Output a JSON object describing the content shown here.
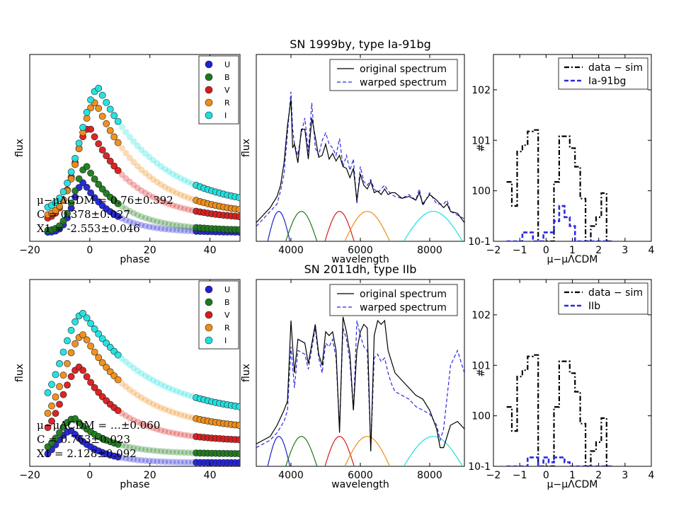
{
  "figure": {
    "rows": [
      {
        "title": "SN 1999by, type Ia-91bg",
        "annotations": [
          "μ−μΛCDM = 0.76±0.392",
          "C = 0.378±0.027",
          "X1 = -2.553±0.046"
        ],
        "hist_model_label": "Ia-91bg"
      },
      {
        "title": "SN 2011dh, type IIb",
        "annotations": [
          "μ−μΛCDM = …±0.060",
          "C = 0.763±0.023",
          "X1 = 2.128±0.092"
        ],
        "hist_model_label": "IIb"
      }
    ],
    "colors": {
      "U": "#1f1fd6",
      "B": "#1a7a1a",
      "V": "#d81a1a",
      "R": "#f08c14",
      "I": "#1ce0e0",
      "warped": "#2a2ae0"
    }
  },
  "chart_data": [
    {
      "type": "scatter",
      "panel": "lightcurve-top",
      "title": "",
      "xlabel": "phase",
      "ylabel": "flux",
      "xlim": [
        -20,
        50
      ],
      "ylim": [
        0,
        1.05
      ],
      "xticks": [
        "−20",
        "0",
        "20",
        "40"
      ],
      "xtick_values": [
        -20,
        0,
        20,
        40
      ],
      "legend": [
        "U",
        "B",
        "V",
        "R",
        "I"
      ],
      "series": [
        {
          "name": "U",
          "peak_phase": -2,
          "peak": 0.33,
          "rise": 3.5,
          "decay": 10,
          "tail": 0.05
        },
        {
          "name": "B",
          "peak_phase": -1,
          "peak": 0.42,
          "rise": 4,
          "decay": 12,
          "tail": 0.06
        },
        {
          "name": "V",
          "peak_phase": 0,
          "peak": 0.64,
          "rise": 5,
          "decay": 15,
          "tail": 0.12
        },
        {
          "name": "R",
          "peak_phase": 2,
          "peak": 0.78,
          "rise": 5.5,
          "decay": 17,
          "tail": 0.14
        },
        {
          "name": "I",
          "peak_phase": 3,
          "peak": 0.86,
          "rise": 6,
          "decay": 20,
          "tail": 0.18
        }
      ]
    },
    {
      "type": "line",
      "panel": "spectrum-top",
      "title": "SN 1999by, type Ia-91bg",
      "xlabel": "wavelength",
      "ylabel": "flux",
      "xlim": [
        3000,
        9000
      ],
      "ylim": [
        0,
        1
      ],
      "xticks": [
        "4000",
        "6000",
        "8000"
      ],
      "xtick_values": [
        4000,
        6000,
        8000
      ],
      "legend": [
        "original spectrum",
        "warped spectrum"
      ],
      "original": {
        "x": [
          3000,
          3200,
          3400,
          3600,
          3700,
          3800,
          3900,
          4000,
          4050,
          4100,
          4200,
          4300,
          4400,
          4500,
          4600,
          4700,
          4800,
          4900,
          5000,
          5100,
          5200,
          5300,
          5400,
          5500,
          5600,
          5700,
          5800,
          5900,
          6000,
          6100,
          6200,
          6300,
          6400,
          6500,
          6600,
          6700,
          6800,
          6900,
          7000,
          7200,
          7400,
          7600,
          7700,
          7800,
          8000,
          8200,
          8400,
          8500,
          8600,
          8800,
          9000
        ],
        "y": [
          0.1,
          0.14,
          0.18,
          0.24,
          0.3,
          0.42,
          0.62,
          0.76,
          0.5,
          0.52,
          0.42,
          0.6,
          0.6,
          0.44,
          0.66,
          0.56,
          0.45,
          0.46,
          0.52,
          0.44,
          0.47,
          0.43,
          0.46,
          0.4,
          0.39,
          0.34,
          0.39,
          0.22,
          0.36,
          0.3,
          0.28,
          0.32,
          0.26,
          0.27,
          0.25,
          0.28,
          0.25,
          0.26,
          0.26,
          0.23,
          0.24,
          0.22,
          0.26,
          0.2,
          0.25,
          0.22,
          0.18,
          0.2,
          0.16,
          0.15,
          0.1
        ]
      },
      "warped": {
        "x": [
          3000,
          3200,
          3400,
          3600,
          3700,
          3800,
          3900,
          4000,
          4050,
          4100,
          4200,
          4300,
          4400,
          4500,
          4600,
          4700,
          4800,
          4900,
          5000,
          5100,
          5200,
          5300,
          5400,
          5500,
          5600,
          5700,
          5800,
          5900,
          6000,
          6100,
          6200,
          6300,
          6400,
          6500,
          6600,
          6700,
          6800,
          6900,
          7000,
          7200,
          7400,
          7600,
          7700,
          7800,
          8000,
          8200,
          8400,
          8500,
          8600,
          8800,
          9000
        ],
        "y": [
          0.08,
          0.12,
          0.16,
          0.2,
          0.27,
          0.36,
          0.58,
          0.8,
          0.6,
          0.52,
          0.46,
          0.58,
          0.66,
          0.48,
          0.74,
          0.5,
          0.46,
          0.54,
          0.58,
          0.52,
          0.5,
          0.46,
          0.55,
          0.4,
          0.46,
          0.38,
          0.44,
          0.2,
          0.4,
          0.32,
          0.3,
          0.33,
          0.28,
          0.26,
          0.28,
          0.3,
          0.27,
          0.25,
          0.24,
          0.23,
          0.25,
          0.22,
          0.28,
          0.19,
          0.26,
          0.2,
          0.2,
          0.22,
          0.16,
          0.14,
          0.12
        ]
      },
      "filters": [
        {
          "name": "U",
          "center": 3650,
          "width": 320
        },
        {
          "name": "B",
          "center": 4300,
          "width": 450
        },
        {
          "name": "V",
          "center": 5400,
          "width": 420
        },
        {
          "name": "R",
          "center": 6200,
          "width": 650
        },
        {
          "name": "I",
          "center": 8100,
          "width": 850
        }
      ]
    },
    {
      "type": "bar",
      "panel": "hist-top",
      "title": "",
      "xlabel": "μ−μΛCDM",
      "ylabel": "#",
      "xlim": [
        -2,
        4
      ],
      "ylim_log": [
        0.1,
        500
      ],
      "xticks": [
        "−2",
        "−1",
        "0",
        "1",
        "2",
        "3",
        "4"
      ],
      "xtick_values": [
        -2,
        -1,
        0,
        1,
        2,
        3,
        4
      ],
      "yticks": [
        "10-1",
        "100",
        "101",
        "102"
      ],
      "legend": [
        "data − sim",
        "Ia-91bg"
      ],
      "bin_edges": [
        -1.5,
        -1.3,
        -1.1,
        -0.9,
        -0.7,
        -0.5,
        -0.3,
        -0.1,
        0.1,
        0.3,
        0.5,
        0.7,
        0.9,
        1.1,
        1.3,
        1.5,
        1.7,
        1.9,
        2.1,
        2.3,
        2.5
      ],
      "data_minus_sim": [
        1.5,
        0.5,
        6,
        8,
        15,
        16,
        0.1,
        0.1,
        0.1,
        1.5,
        12,
        12,
        7,
        3,
        0.7,
        0.1,
        0.2,
        0.3,
        0.9,
        0.1
      ],
      "model": [
        0.1,
        0.1,
        0.1,
        0.15,
        0.15,
        0.1,
        0.1,
        0.15,
        0.15,
        0.25,
        0.5,
        0.3,
        0.2,
        0.1,
        0.1,
        0.1,
        0.1,
        0.1,
        0.1,
        0.1
      ]
    },
    {
      "type": "scatter",
      "panel": "lightcurve-bottom",
      "title": "",
      "xlabel": "phase",
      "ylabel": "flux",
      "xlim": [
        -20,
        50
      ],
      "ylim": [
        0,
        1.05
      ],
      "xticks": [
        "−20",
        "0",
        "20",
        "40"
      ],
      "xtick_values": [
        -20,
        0,
        20,
        40
      ],
      "legend": [
        "U",
        "B",
        "V",
        "R",
        "I"
      ],
      "series": [
        {
          "name": "U",
          "peak_phase": -6,
          "peak": 0.2,
          "rise": 5,
          "decay": 9,
          "tail": 0.02
        },
        {
          "name": "B",
          "peak_phase": -5,
          "peak": 0.27,
          "rise": 5,
          "decay": 11,
          "tail": 0.07
        },
        {
          "name": "V",
          "peak_phase": -3,
          "peak": 0.56,
          "rise": 6,
          "decay": 14,
          "tail": 0.14
        },
        {
          "name": "R",
          "peak_phase": -2,
          "peak": 0.74,
          "rise": 6.5,
          "decay": 18,
          "tail": 0.2
        },
        {
          "name": "I",
          "peak_phase": -2,
          "peak": 0.86,
          "rise": 7,
          "decay": 22,
          "tail": 0.28
        }
      ]
    },
    {
      "type": "line",
      "panel": "spectrum-bottom",
      "title": "SN 2011dh, type IIb",
      "xlabel": "wavelength",
      "ylabel": "flux",
      "xlim": [
        3000,
        9000
      ],
      "ylim": [
        0,
        1
      ],
      "xticks": [
        "4000",
        "6000",
        "8000"
      ],
      "xtick_values": [
        4000,
        6000,
        8000
      ],
      "legend": [
        "original spectrum",
        "warped spectrum"
      ],
      "original": {
        "x": [
          3000,
          3200,
          3400,
          3600,
          3800,
          3900,
          4000,
          4100,
          4200,
          4400,
          4500,
          4700,
          4800,
          4900,
          5000,
          5100,
          5200,
          5300,
          5400,
          5500,
          5600,
          5700,
          5800,
          5900,
          6000,
          6100,
          6200,
          6300,
          6400,
          6500,
          6600,
          6700,
          6800,
          6900,
          7000,
          7200,
          7400,
          7600,
          7800,
          8000,
          8200,
          8300,
          8400,
          8600,
          8800,
          9000
        ],
        "y": [
          0.12,
          0.14,
          0.16,
          0.22,
          0.3,
          0.35,
          0.78,
          0.5,
          0.68,
          0.66,
          0.55,
          0.76,
          0.6,
          0.54,
          0.72,
          0.7,
          0.72,
          0.62,
          0.18,
          0.8,
          0.72,
          0.6,
          0.3,
          0.62,
          0.72,
          0.76,
          0.74,
          0.08,
          0.7,
          0.78,
          0.76,
          0.78,
          0.62,
          0.56,
          0.5,
          0.46,
          0.42,
          0.38,
          0.36,
          0.3,
          0.2,
          0.1,
          0.1,
          0.22,
          0.24,
          0.2
        ]
      },
      "warped": {
        "x": [
          3000,
          3200,
          3400,
          3600,
          3800,
          3900,
          4000,
          4100,
          4200,
          4400,
          4500,
          4700,
          4800,
          4900,
          5000,
          5100,
          5200,
          5300,
          5400,
          5500,
          5600,
          5700,
          5800,
          5900,
          6000,
          6100,
          6200,
          6300,
          6400,
          6500,
          6600,
          6700,
          6800,
          6900,
          7000,
          7200,
          7400,
          7600,
          7800,
          8000,
          8200,
          8300,
          8400,
          8600,
          8800,
          9000
        ],
        "y": [
          0.1,
          0.12,
          0.14,
          0.18,
          0.24,
          0.3,
          0.64,
          0.42,
          0.62,
          0.6,
          0.52,
          0.74,
          0.58,
          0.5,
          0.66,
          0.64,
          0.68,
          0.58,
          0.2,
          0.74,
          0.68,
          0.56,
          0.3,
          0.78,
          0.7,
          0.64,
          0.62,
          0.1,
          0.58,
          0.6,
          0.56,
          0.58,
          0.5,
          0.44,
          0.4,
          0.38,
          0.36,
          0.32,
          0.3,
          0.28,
          0.22,
          0.14,
          0.2,
          0.54,
          0.62,
          0.5
        ]
      },
      "filters": [
        {
          "name": "U",
          "center": 3650,
          "width": 320
        },
        {
          "name": "B",
          "center": 4300,
          "width": 450
        },
        {
          "name": "V",
          "center": 5400,
          "width": 420
        },
        {
          "name": "R",
          "center": 6200,
          "width": 650
        },
        {
          "name": "I",
          "center": 8100,
          "width": 850
        }
      ]
    },
    {
      "type": "bar",
      "panel": "hist-bottom",
      "title": "",
      "xlabel": "μ−μΛCDM",
      "ylabel": "#",
      "xlim": [
        -2,
        4
      ],
      "ylim_log": [
        0.1,
        500
      ],
      "xticks": [
        "−2",
        "−1",
        "0",
        "1",
        "2",
        "3",
        "4"
      ],
      "xtick_values": [
        -2,
        -1,
        0,
        1,
        2,
        3,
        4
      ],
      "yticks": [
        "10-1",
        "100",
        "101",
        "102"
      ],
      "legend": [
        "data − sim",
        "IIb"
      ],
      "bin_edges": [
        -1.5,
        -1.3,
        -1.1,
        -0.9,
        -0.7,
        -0.5,
        -0.3,
        -0.1,
        0.1,
        0.3,
        0.5,
        0.7,
        0.9,
        1.1,
        1.3,
        1.5,
        1.7,
        1.9,
        2.1,
        2.3,
        2.5
      ],
      "data_minus_sim": [
        1.5,
        0.5,
        6,
        8,
        15,
        16,
        0.1,
        0.1,
        0.1,
        1.5,
        12,
        12,
        7,
        3,
        0.7,
        0.1,
        0.2,
        0.3,
        0.9,
        0.1
      ],
      "model": [
        0.1,
        0.1,
        0.1,
        0.1,
        0.15,
        0.15,
        0.1,
        0.15,
        0.12,
        0.15,
        0.15,
        0.12,
        0.1,
        0.1,
        0.1,
        0.1,
        0.1,
        0.1,
        0.1,
        0.1
      ]
    }
  ]
}
